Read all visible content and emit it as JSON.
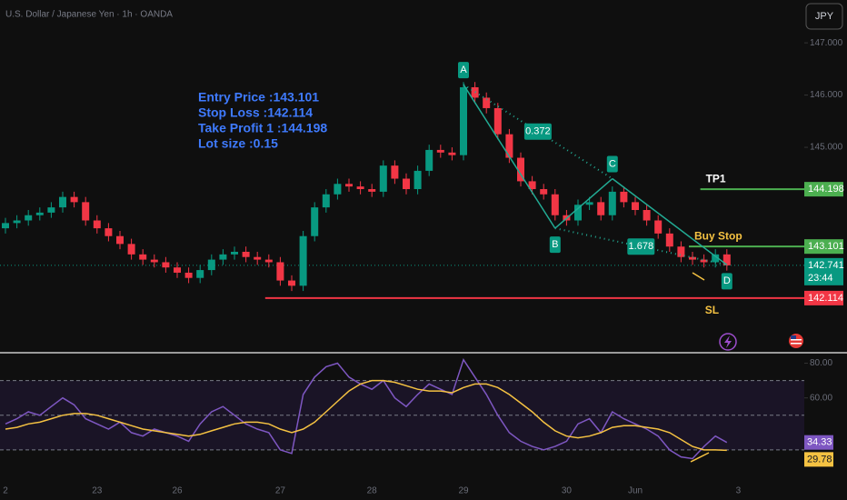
{
  "chart_data": {
    "type": "candlestick",
    "title": "U.S. Dollar / Japanese Yen · 1h · OANDA",
    "currency": "JPY",
    "up_color": "#089981",
    "down_color": "#f23645",
    "categories": [
      "2",
      null,
      null,
      null,
      null,
      null,
      null,
      null,
      "23",
      null,
      null,
      null,
      null,
      null,
      null,
      "26",
      null,
      null,
      null,
      null,
      null,
      null,
      null,
      null,
      "27",
      null,
      null,
      null,
      null,
      null,
      null,
      null,
      "28",
      null,
      null,
      null,
      null,
      null,
      null,
      null,
      "29",
      null,
      null,
      null,
      null,
      null,
      null,
      null,
      null,
      "30",
      null,
      null,
      null,
      null,
      null,
      "Jun",
      null,
      null,
      null,
      null,
      null,
      null,
      null,
      null,
      "3",
      null
    ],
    "open": [
      143.45,
      143.55,
      143.6,
      143.7,
      143.75,
      143.85,
      144.05,
      143.95,
      143.6,
      143.45,
      143.3,
      143.15,
      142.95,
      142.85,
      142.8,
      142.7,
      142.6,
      142.5,
      142.65,
      142.85,
      142.95,
      143.0,
      142.9,
      142.85,
      142.8,
      142.45,
      142.35,
      143.3,
      143.85,
      144.1,
      144.3,
      144.25,
      144.2,
      144.15,
      144.65,
      144.4,
      144.2,
      144.55,
      144.95,
      144.9,
      144.85,
      146.15,
      145.95,
      145.75,
      145.25,
      144.8,
      144.35,
      144.2,
      144.1,
      143.7,
      143.6,
      143.9,
      143.95,
      143.7,
      144.15,
      143.95,
      143.8,
      143.6,
      143.35,
      143.1,
      142.9,
      142.85,
      142.8,
      142.95,
      null,
      null
    ],
    "high": [
      143.65,
      143.7,
      143.8,
      143.85,
      143.95,
      144.15,
      144.15,
      144.05,
      143.7,
      143.55,
      143.4,
      143.25,
      143.05,
      142.95,
      142.9,
      142.8,
      142.7,
      142.75,
      142.95,
      143.05,
      143.1,
      143.1,
      143.0,
      142.95,
      142.9,
      142.55,
      143.4,
      143.95,
      144.2,
      144.4,
      144.4,
      144.35,
      144.3,
      144.75,
      144.75,
      144.5,
      144.65,
      145.05,
      145.05,
      145.0,
      146.25,
      146.25,
      146.05,
      145.85,
      145.35,
      144.9,
      144.45,
      144.3,
      144.2,
      143.8,
      144.0,
      144.05,
      144.05,
      144.25,
      144.25,
      144.05,
      143.9,
      143.7,
      143.45,
      143.2,
      143.0,
      142.95,
      143.05,
      143.05,
      null,
      null
    ],
    "low": [
      143.35,
      143.45,
      143.5,
      143.6,
      143.65,
      143.75,
      143.85,
      143.5,
      143.35,
      143.2,
      143.05,
      142.85,
      142.75,
      142.7,
      142.6,
      142.5,
      142.4,
      142.4,
      142.55,
      142.75,
      142.85,
      142.8,
      142.75,
      142.7,
      142.35,
      142.25,
      142.25,
      143.2,
      143.75,
      144.0,
      144.15,
      144.1,
      144.05,
      144.05,
      144.3,
      144.1,
      144.1,
      144.45,
      144.8,
      144.75,
      144.75,
      145.85,
      145.65,
      145.15,
      144.7,
      144.25,
      144.1,
      144.0,
      143.6,
      143.5,
      143.5,
      143.8,
      143.6,
      143.6,
      143.85,
      143.7,
      143.5,
      143.25,
      143.0,
      142.8,
      142.75,
      142.7,
      142.7,
      142.64,
      null,
      null
    ],
    "close": [
      143.55,
      143.6,
      143.7,
      143.75,
      143.85,
      144.05,
      143.95,
      143.6,
      143.45,
      143.3,
      143.15,
      142.95,
      142.85,
      142.8,
      142.7,
      142.6,
      142.5,
      142.65,
      142.85,
      142.95,
      143.0,
      142.9,
      142.85,
      142.8,
      142.45,
      142.35,
      143.3,
      143.85,
      144.1,
      144.3,
      144.25,
      144.2,
      144.15,
      144.65,
      144.4,
      144.2,
      144.55,
      144.95,
      144.9,
      144.85,
      146.15,
      145.95,
      145.75,
      145.25,
      144.8,
      144.35,
      144.2,
      144.1,
      143.7,
      143.6,
      143.9,
      143.95,
      143.7,
      144.15,
      143.95,
      143.8,
      143.6,
      143.35,
      143.1,
      142.9,
      142.85,
      142.8,
      142.95,
      142.74,
      null,
      null
    ],
    "ylim": [
      141.12,
      147.82
    ],
    "yticks": [
      {
        "value": 147,
        "label": "147.000"
      },
      {
        "value": 146,
        "label": "146.000"
      },
      {
        "value": 145,
        "label": "145.000"
      }
    ],
    "current_price": 142.741,
    "countdown": "23:44",
    "levels": [
      {
        "label": "TP1",
        "value": 144.198,
        "color": "#4caf50",
        "label_color": "#ffffff",
        "from": 61
      },
      {
        "label": "Buy Stop",
        "value": 143.101,
        "color": "#4caf50",
        "label_color": "#f5c242",
        "from": 60
      },
      {
        "label": "SL",
        "value": 142.114,
        "color": "#f23645",
        "label_color": "#f5c242",
        "from": 23
      }
    ],
    "pattern": [
      {
        "label": "A",
        "index": 40,
        "price": 146.2
      },
      {
        "label": "B",
        "index": 48,
        "price": 143.45
      },
      {
        "label": "C",
        "index": 53,
        "price": 144.4
      },
      {
        "label": "D",
        "index": 63,
        "price": 142.75
      }
    ],
    "ratios": [
      0.372,
      1.678
    ],
    "notes": [
      "Entry Price :143.101",
      "Stop Loss :142.114",
      "Take Profit 1 :144.198",
      "Lot size :0.15"
    ],
    "indicator": {
      "ylim": [
        9,
        85
      ],
      "yticks": [
        {
          "value": 80,
          "label": "80.00"
        },
        {
          "value": 60,
          "label": "60.00"
        }
      ],
      "levels": [
        70,
        50,
        30
      ],
      "series": [
        {
          "color": "#7e57c2",
          "values": [
            45,
            48,
            52,
            50,
            55,
            60,
            56,
            48,
            45,
            42,
            46,
            40,
            38,
            42,
            40,
            38,
            35,
            45,
            52,
            55,
            50,
            45,
            42,
            40,
            30,
            28,
            62,
            72,
            78,
            80,
            72,
            68,
            65,
            70,
            60,
            55,
            62,
            68,
            65,
            62,
            82,
            72,
            62,
            50,
            40,
            35,
            32,
            30,
            32,
            35,
            45,
            48,
            40,
            52,
            48,
            45,
            42,
            38,
            30,
            26,
            25,
            32,
            38,
            34.33,
            null,
            null
          ]
        },
        {
          "color": "#f5c242",
          "values": [
            42,
            43,
            45,
            46,
            48,
            50,
            51,
            51,
            50,
            48,
            46,
            44,
            42,
            41,
            40,
            39,
            38,
            39,
            41,
            43,
            45,
            46,
            46,
            45,
            42,
            40,
            42,
            46,
            52,
            58,
            64,
            68,
            70,
            70,
            69,
            67,
            65,
            64,
            64,
            63,
            66,
            68,
            68,
            66,
            62,
            57,
            52,
            46,
            41,
            38,
            37,
            38,
            40,
            43,
            44,
            44,
            43,
            42,
            40,
            36,
            32,
            30,
            30,
            29.78,
            null,
            null
          ]
        }
      ]
    }
  }
}
